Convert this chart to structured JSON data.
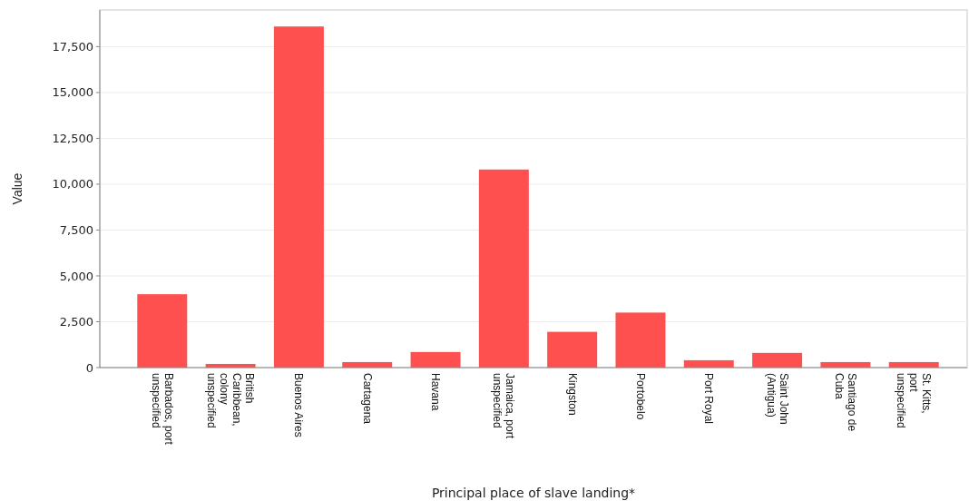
{
  "chart_data": {
    "type": "bar",
    "xlabel": "Principal place of slave landing*",
    "ylabel": "Value",
    "categories": [
      "Barbados, port unspecified",
      "British Caribbean, colony unspecified",
      "Buenos Aires",
      "Cartagena",
      "Havana",
      "Jamaica, port unspecified",
      "Kingston",
      "Portobelo",
      "Port Royal",
      "Saint John (Antigua)",
      "Santiago de Cuba",
      "St. Kitts, port unspecified"
    ],
    "values": [
      4000,
      200,
      18600,
      300,
      850,
      10800,
      1950,
      3000,
      400,
      800,
      300,
      300
    ],
    "color": "#ff5050",
    "ylim": [
      0,
      19500
    ],
    "yticks": [
      {
        "value": 0,
        "label": "0"
      },
      {
        "value": 2500,
        "label": "2,500"
      },
      {
        "value": 5000,
        "label": "5,000"
      },
      {
        "value": 7500,
        "label": "7,500"
      },
      {
        "value": 10000,
        "label": "10,000"
      },
      {
        "value": 12500,
        "label": "12,500"
      },
      {
        "value": 15000,
        "label": "15,000"
      },
      {
        "value": 17500,
        "label": "17,500"
      }
    ],
    "grid": "y"
  }
}
